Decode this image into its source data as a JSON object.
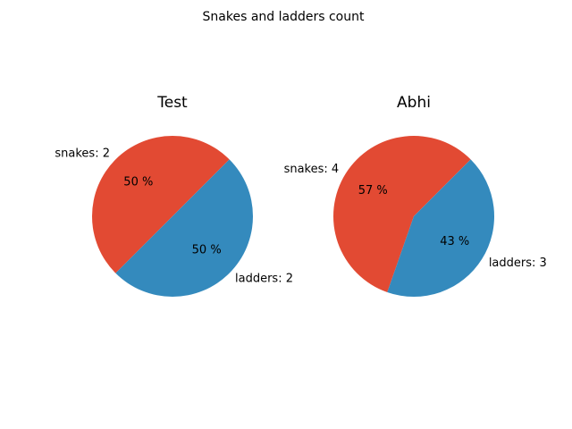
{
  "figure": {
    "suptitle": "Snakes and ladders count"
  },
  "chart_data": [
    {
      "type": "pie",
      "title": "Test",
      "slices": [
        {
          "name": "snakes",
          "value": 2,
          "label": "snakes: 2",
          "pct_label": "50 %",
          "color": "#E24A33"
        },
        {
          "name": "ladders",
          "value": 2,
          "label": "ladders: 2",
          "pct_label": "50 %",
          "color": "#348ABD"
        }
      ]
    },
    {
      "type": "pie",
      "title": "Abhi",
      "slices": [
        {
          "name": "snakes",
          "value": 4,
          "label": "snakes: 4",
          "pct_label": "57 %",
          "color": "#E24A33"
        },
        {
          "name": "ladders",
          "value": 3,
          "label": "ladders: 3",
          "pct_label": "43 %",
          "color": "#348ABD"
        }
      ]
    }
  ]
}
